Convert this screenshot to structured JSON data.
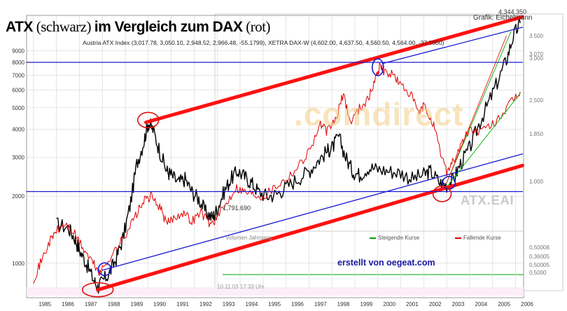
{
  "title": {
    "part1": "ATX",
    "part2": " (schwarz) ",
    "part3": "im Vergleich zum DAX",
    "part4": " (rot)"
  },
  "subtitle": "Austria ATX Index (3,017.78, 3,050.10, 2,948.52, 2,966.48, -55.1799), XETRA DAX-W (4,602.00, 4,637.50, 4,560.50, 4,564.00, -37.5000)",
  "credit": "erstellt von oegeat.com",
  "watermark": ".comdirect",
  "atx_eai": "ATX.EAI",
  "grafik_label": "Grafik: Eichelmann",
  "peak_label": "4,344.350",
  "low_label": "1,791.690",
  "legend": {
    "steigende": "Steigende Kurse",
    "fallende": "Fallende Kurse",
    "volume": "Volumen Jahrgang"
  },
  "datestamp": "10.11.03   17:33 Uhr",
  "colors": {
    "atx": "#000000",
    "dax": "#e00000",
    "trend_red": "#ff1010",
    "trend_blue": "#1a1ad0",
    "marker_red": "#e01010",
    "marker_blue": "#1a1ad0",
    "green": "#00b000",
    "grid": "#d8d8d8"
  },
  "chart_data": {
    "type": "line",
    "y_scale": "log",
    "ylim": [
      700,
      13000
    ],
    "left_ticks": [
      1000,
      2000,
      3000,
      4000,
      5000,
      6000,
      7000,
      8000,
      9000
    ],
    "right_ticks": [
      "3.500",
      "3.070",
      "3.000",
      "2.500",
      "1.850",
      "1.000",
      "0,50008",
      "0,36005",
      "0,50005",
      "0,5000"
    ],
    "x_years": [
      1985,
      1986,
      1987,
      1988,
      1989,
      1990,
      1991,
      1992,
      1993,
      1994,
      1995,
      1996,
      1997,
      1998,
      1999,
      2000,
      2001,
      2002,
      2003,
      2004,
      2005,
      2006
    ],
    "series": [
      {
        "name": "ATX",
        "color": "#000000",
        "points": [
          [
            1986.0,
            1500
          ],
          [
            1986.5,
            1450
          ],
          [
            1986.8,
            1300
          ],
          [
            1987.0,
            1150
          ],
          [
            1987.3,
            1000
          ],
          [
            1987.6,
            850
          ],
          [
            1987.8,
            780
          ],
          [
            1988.0,
            830
          ],
          [
            1988.3,
            900
          ],
          [
            1988.6,
            1050
          ],
          [
            1988.9,
            1300
          ],
          [
            1989.2,
            1800
          ],
          [
            1989.5,
            2800
          ],
          [
            1989.8,
            3500
          ],
          [
            1990.0,
            4300
          ],
          [
            1990.2,
            4000
          ],
          [
            1990.5,
            3200
          ],
          [
            1990.8,
            2600
          ],
          [
            1991.0,
            2500
          ],
          [
            1991.3,
            2300
          ],
          [
            1991.6,
            2400
          ],
          [
            1991.9,
            2100
          ],
          [
            1992.2,
            1950
          ],
          [
            1992.5,
            1700
          ],
          [
            1992.8,
            1600
          ],
          [
            1993.0,
            1750
          ],
          [
            1993.3,
            2100
          ],
          [
            1993.6,
            2400
          ],
          [
            1993.9,
            2600
          ],
          [
            1994.2,
            2450
          ],
          [
            1994.5,
            2300
          ],
          [
            1994.8,
            2100
          ],
          [
            1995.2,
            2000
          ],
          [
            1995.6,
            2050
          ],
          [
            1996.0,
            2200
          ],
          [
            1996.5,
            2400
          ],
          [
            1997.0,
            2600
          ],
          [
            1997.4,
            2900
          ],
          [
            1997.8,
            3200
          ],
          [
            1998.0,
            3300
          ],
          [
            1998.3,
            3700
          ],
          [
            1998.6,
            3000
          ],
          [
            1998.9,
            2600
          ],
          [
            1999.2,
            2500
          ],
          [
            1999.6,
            2700
          ],
          [
            2000.0,
            2650
          ],
          [
            2000.5,
            2600
          ],
          [
            2001.0,
            2550
          ],
          [
            2001.5,
            2400
          ],
          [
            2002.0,
            2500
          ],
          [
            2002.3,
            2600
          ],
          [
            2002.7,
            2300
          ],
          [
            2003.0,
            2250
          ],
          [
            2003.3,
            2400
          ],
          [
            2003.6,
            2800
          ],
          [
            2004.0,
            3300
          ],
          [
            2004.4,
            4200
          ],
          [
            2004.8,
            5200
          ],
          [
            2005.2,
            6500
          ],
          [
            2005.6,
            8200
          ],
          [
            2005.9,
            10500
          ],
          [
            2006.2,
            12000
          ]
        ]
      },
      {
        "name": "DAX",
        "color": "#e00000",
        "points": [
          [
            1985.0,
            850
          ],
          [
            1985.3,
            1000
          ],
          [
            1985.7,
            1250
          ],
          [
            1986.0,
            1400
          ],
          [
            1986.4,
            1500
          ],
          [
            1986.8,
            1350
          ],
          [
            1987.2,
            1150
          ],
          [
            1987.6,
            1000
          ],
          [
            1987.9,
            900
          ],
          [
            1988.3,
            1050
          ],
          [
            1988.7,
            1200
          ],
          [
            1989.0,
            1350
          ],
          [
            1989.4,
            1600
          ],
          [
            1989.8,
            1900
          ],
          [
            1990.1,
            2000
          ],
          [
            1990.5,
            1800
          ],
          [
            1990.8,
            1500
          ],
          [
            1991.1,
            1600
          ],
          [
            1991.5,
            1700
          ],
          [
            1991.9,
            1550
          ],
          [
            1992.3,
            1700
          ],
          [
            1992.7,
            1500
          ],
          [
            1993.0,
            1600
          ],
          [
            1993.4,
            1850
          ],
          [
            1993.8,
            2200
          ],
          [
            1994.2,
            2100
          ],
          [
            1994.6,
            2050
          ],
          [
            1995.0,
            2000
          ],
          [
            1995.5,
            2200
          ],
          [
            1996.0,
            2400
          ],
          [
            1996.5,
            2700
          ],
          [
            1997.0,
            3200
          ],
          [
            1997.5,
            4200
          ],
          [
            1997.8,
            3900
          ],
          [
            1998.2,
            4500
          ],
          [
            1998.5,
            5800
          ],
          [
            1998.8,
            4300
          ],
          [
            1999.2,
            5000
          ],
          [
            1999.6,
            5500
          ],
          [
            1999.9,
            6800
          ],
          [
            2000.1,
            7800
          ],
          [
            2000.3,
            7200
          ],
          [
            2000.7,
            7000
          ],
          [
            2001.0,
            6300
          ],
          [
            2001.4,
            5800
          ],
          [
            2001.8,
            4700
          ],
          [
            2002.0,
            5100
          ],
          [
            2002.4,
            4300
          ],
          [
            2002.7,
            3200
          ],
          [
            2003.0,
            2600
          ],
          [
            2003.3,
            2900
          ],
          [
            2003.7,
            3500
          ],
          [
            2004.0,
            4000
          ],
          [
            2004.5,
            3900
          ],
          [
            2005.0,
            4200
          ],
          [
            2005.5,
            4800
          ],
          [
            2005.9,
            5400
          ],
          [
            2006.2,
            5900
          ]
        ]
      }
    ],
    "trend_lines": [
      {
        "name": "upper-red-trend",
        "color": "#ff1010",
        "from": [
          1989.9,
          4300
        ],
        "to": [
          2006.3,
          12800
        ]
      },
      {
        "name": "lower-red-trend",
        "color": "#ff1010",
        "from": [
          1987.8,
          760
        ],
        "to": [
          2006.3,
          2750
        ]
      },
      {
        "name": "lower-blue-trend",
        "color": "#1a1ad0",
        "from": [
          1988.0,
          930
        ],
        "to": [
          2006.3,
          3100
        ]
      },
      {
        "name": "upper-blue-trend",
        "color": "#1a1ad0",
        "from": [
          2000.2,
          7900
        ],
        "to": [
          2006.3,
          11500
        ]
      },
      {
        "name": "blue-horizontal-8000",
        "color": "#1a1ad0",
        "from": [
          1984.7,
          8000
        ],
        "to": [
          2006.3,
          8000
        ]
      },
      {
        "name": "blue-horizontal-2100",
        "color": "#1a1ad0",
        "from": [
          1984.7,
          2100
        ],
        "to": [
          2006.3,
          2100
        ]
      },
      {
        "name": "green-channel-1",
        "color": "#00b000",
        "from": [
          2003.0,
          2200
        ],
        "to": [
          2006.2,
          5800
        ]
      },
      {
        "name": "green-channel-2",
        "color": "#00b000",
        "from": [
          2003.0,
          2300
        ],
        "to": [
          2005.8,
          11000
        ]
      },
      {
        "name": "red-thin-trend",
        "color": "#ff1010",
        "from": [
          2003.0,
          2300
        ],
        "to": [
          2005.6,
          10500
        ]
      }
    ],
    "markers": [
      {
        "name": "atx-peak-1990",
        "shape": "ellipse",
        "color": "#e01010",
        "at": [
          1990.0,
          4400
        ]
      },
      {
        "name": "dax-peak-2000",
        "shape": "ellipse",
        "color": "#1a1ad0",
        "at": [
          2000.0,
          7600
        ]
      },
      {
        "name": "atx-low-1988",
        "shape": "ellipse",
        "color": "#1a1ad0",
        "at": [
          1988.1,
          940
        ]
      },
      {
        "name": "atx-low-1987",
        "shape": "ellipse",
        "color": "#e01010",
        "at": [
          1987.8,
          760
        ]
      },
      {
        "name": "blue-low-2003",
        "shape": "ellipse",
        "color": "#1a1ad0",
        "at": [
          2003.1,
          2300
        ]
      },
      {
        "name": "red-low-2003",
        "shape": "ellipse",
        "color": "#e01010",
        "at": [
          2002.8,
          2050
        ]
      }
    ]
  }
}
